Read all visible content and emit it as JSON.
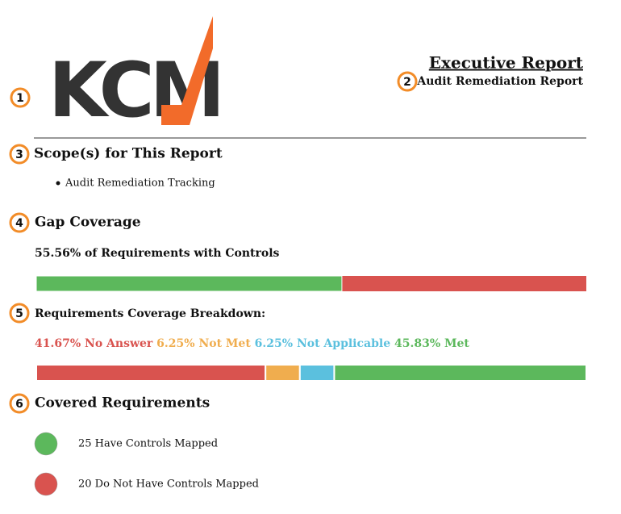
{
  "logo": "KCM",
  "header": {
    "title": "Executive Report",
    "subtitle": "Audit Remediation Report"
  },
  "callouts": [
    "1",
    "2",
    "3",
    "4",
    "5",
    "6"
  ],
  "scope": {
    "heading": "Scope(s) for This Report",
    "items": [
      "Audit Remediation Tracking"
    ]
  },
  "gap": {
    "heading": "Gap Coverage",
    "coverage": {
      "value": 55.56,
      "label": "55.56% of Requirements with Controls",
      "color": "#5cb85c",
      "rest_color": "#d9534f"
    }
  },
  "breakdown": {
    "heading": "Requirements Coverage Breakdown:",
    "segments": [
      {
        "value": 41.67,
        "label": "41.67% No Answer",
        "color": "#d9534f"
      },
      {
        "value": 6.25,
        "label": "6.25% Not Met",
        "color": "#f0ad4e"
      },
      {
        "value": 6.25,
        "label": "6.25% Not Applicable",
        "color": "#5bc0de"
      },
      {
        "value": 45.83,
        "label": "45.83% Met",
        "color": "#5cb85c"
      }
    ]
  },
  "covered": {
    "heading": "Covered Requirements",
    "items": [
      {
        "label": "25 Have Controls Mapped",
        "color": "#5cb85c"
      },
      {
        "label": "20 Do Not Have Controls Mapped",
        "color": "#d9534f"
      }
    ]
  }
}
